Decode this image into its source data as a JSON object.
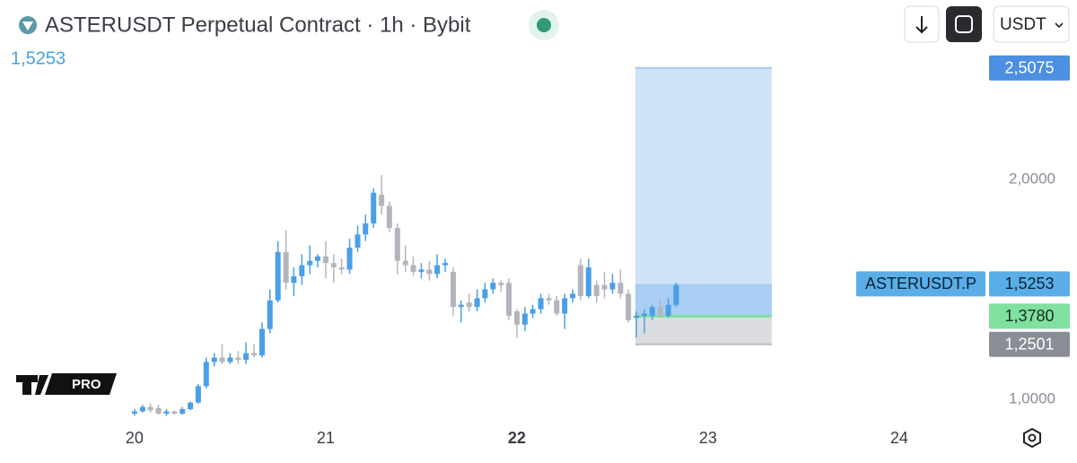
{
  "chart_data": {
    "type": "candlestick",
    "title": "ASTERUSDT Perpetual Contract · 1h · Bybit",
    "currency": "USDT",
    "watermark": "PRO",
    "up_color": "#4a9fe6",
    "down_color": "#b3b5bd",
    "x": [
      20,
      20.042,
      20.083,
      20.125,
      20.167,
      20.208,
      20.25,
      20.292,
      20.333,
      20.375,
      20.417,
      20.458,
      20.5,
      20.542,
      20.583,
      20.625,
      20.667,
      20.708,
      20.75,
      20.792,
      20.833,
      20.875,
      20.917,
      20.958,
      21,
      21.042,
      21.083,
      21.125,
      21.167,
      21.208,
      21.25,
      21.292,
      21.333,
      21.375,
      21.417,
      21.458,
      21.5,
      21.542,
      21.583,
      21.625,
      21.667,
      21.708,
      21.75,
      21.792,
      21.833,
      21.875,
      21.917,
      21.958,
      22,
      22.042,
      22.083,
      22.125,
      22.167,
      22.208,
      22.25,
      22.292,
      22.333,
      22.375,
      22.417,
      22.458,
      22.5,
      22.542,
      22.583,
      22.625,
      22.667,
      22.708,
      22.75,
      22.792,
      22.833
    ],
    "open": [
      0.935,
      0.945,
      0.965,
      0.96,
      0.935,
      0.945,
      0.935,
      0.955,
      0.985,
      1.06,
      1.17,
      1.19,
      1.17,
      1.19,
      1.18,
      1.21,
      1.2,
      1.32,
      1.45,
      1.67,
      1.53,
      1.56,
      1.61,
      1.63,
      1.65,
      1.62,
      1.6,
      1.59,
      1.69,
      1.75,
      1.8,
      1.93,
      1.88,
      1.78,
      1.63,
      1.61,
      1.58,
      1.59,
      1.57,
      1.61,
      1.58,
      1.42,
      1.44,
      1.42,
      1.46,
      1.5,
      1.53,
      1.53,
      1.4,
      1.34,
      1.39,
      1.41,
      1.46,
      1.45,
      1.39,
      1.46,
      1.61,
      1.47,
      1.52,
      1.52,
      1.5,
      1.53,
      1.48,
      1.37,
      1.38,
      1.38,
      1.42,
      1.38,
      1.43
    ],
    "high": [
      0.955,
      0.975,
      0.98,
      0.975,
      0.955,
      0.95,
      0.965,
      0.99,
      1.07,
      1.19,
      1.21,
      1.25,
      1.21,
      1.22,
      1.26,
      1.25,
      1.35,
      1.5,
      1.72,
      1.77,
      1.6,
      1.66,
      1.7,
      1.66,
      1.72,
      1.66,
      1.64,
      1.73,
      1.79,
      1.84,
      1.96,
      2.02,
      1.9,
      1.8,
      1.7,
      1.65,
      1.62,
      1.63,
      1.66,
      1.64,
      1.6,
      1.45,
      1.48,
      1.5,
      1.53,
      1.55,
      1.54,
      1.55,
      1.41,
      1.42,
      1.43,
      1.48,
      1.48,
      1.47,
      1.48,
      1.5,
      1.64,
      1.64,
      1.54,
      1.58,
      1.57,
      1.59,
      1.5,
      1.4,
      1.41,
      1.43,
      1.46,
      1.46,
      1.53
    ],
    "low": [
      0.925,
      0.94,
      0.94,
      0.93,
      0.925,
      0.93,
      0.93,
      0.95,
      0.98,
      1.05,
      1.15,
      1.16,
      1.16,
      1.16,
      1.16,
      1.19,
      1.19,
      1.3,
      1.44,
      1.5,
      1.47,
      1.52,
      1.57,
      1.6,
      1.55,
      1.53,
      1.57,
      1.57,
      1.67,
      1.72,
      1.78,
      1.84,
      1.76,
      1.57,
      1.58,
      1.56,
      1.55,
      1.54,
      1.55,
      1.58,
      1.38,
      1.35,
      1.4,
      1.4,
      1.44,
      1.48,
      1.49,
      1.36,
      1.28,
      1.31,
      1.37,
      1.39,
      1.43,
      1.38,
      1.32,
      1.44,
      1.45,
      1.46,
      1.44,
      1.46,
      1.48,
      1.46,
      1.35,
      1.28,
      1.3,
      1.36,
      1.37,
      1.37,
      1.42
    ],
    "close": [
      0.945,
      0.965,
      0.95,
      0.935,
      0.945,
      0.935,
      0.955,
      0.985,
      1.06,
      1.17,
      1.19,
      1.17,
      1.19,
      1.18,
      1.21,
      1.2,
      1.32,
      1.45,
      1.67,
      1.53,
      1.56,
      1.61,
      1.63,
      1.65,
      1.62,
      1.6,
      1.59,
      1.69,
      1.75,
      1.8,
      1.94,
      1.88,
      1.78,
      1.63,
      1.61,
      1.58,
      1.59,
      1.57,
      1.61,
      1.62,
      1.42,
      1.43,
      1.42,
      1.46,
      1.5,
      1.53,
      1.52,
      1.38,
      1.34,
      1.39,
      1.41,
      1.46,
      1.45,
      1.39,
      1.46,
      1.48,
      1.47,
      1.6,
      1.47,
      1.5,
      1.53,
      1.48,
      1.36,
      1.38,
      1.39,
      1.42,
      1.38,
      1.43,
      1.52
    ],
    "xlim": [
      19.296,
      24.437
    ],
    "ylim": [
      0.898,
      2.592
    ],
    "xticks": [
      20,
      21,
      22,
      23,
      24
    ],
    "bold_xtick": 22,
    "yticks": [
      {
        "value": 1,
        "label": "1,0000"
      },
      {
        "value": 2,
        "label": "2,0000"
      }
    ],
    "price_marks": [
      {
        "name": "ASTERUSDT.P",
        "value": 1.5253,
        "label": "1,5253",
        "color": "#5aaee8"
      },
      {
        "value": 2.5075,
        "label": "2,5075",
        "color": "#4c8fe3"
      },
      {
        "value": 1.378,
        "label": "1,3780",
        "color": "#7fe0a0"
      },
      {
        "value": 1.2501,
        "label": "1,2501",
        "color": "#8a8d96"
      }
    ],
    "position": {
      "start": 22.62,
      "end": 23.333
    }
  }
}
